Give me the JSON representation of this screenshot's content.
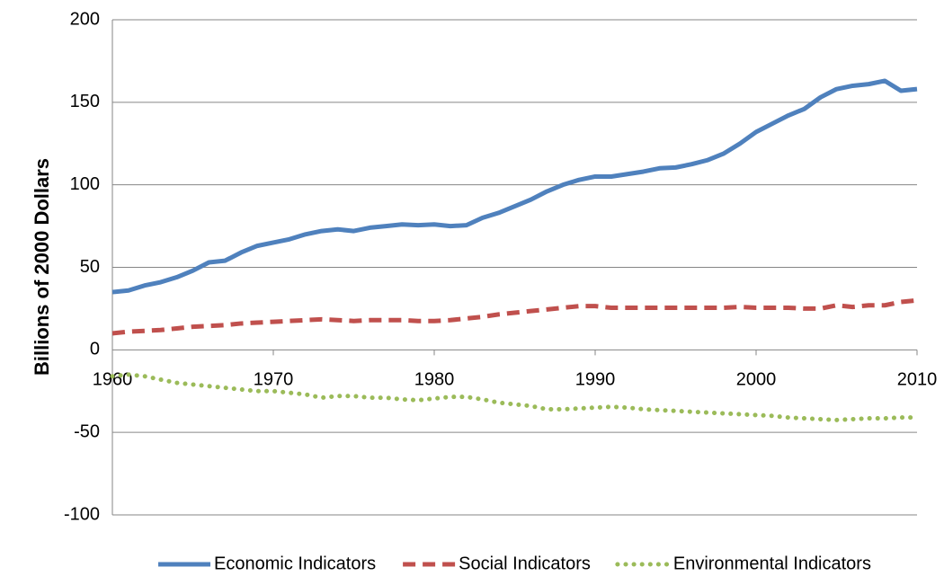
{
  "chart_data": {
    "type": "line",
    "y_label": "Billions of 2000 Dollars",
    "x": [
      1960,
      1961,
      1962,
      1963,
      1964,
      1965,
      1966,
      1967,
      1968,
      1969,
      1970,
      1971,
      1972,
      1973,
      1974,
      1975,
      1976,
      1977,
      1978,
      1979,
      1980,
      1981,
      1982,
      1983,
      1984,
      1985,
      1986,
      1987,
      1988,
      1989,
      1990,
      1991,
      1992,
      1993,
      1994,
      1995,
      1996,
      1997,
      1998,
      1999,
      2000,
      2001,
      2002,
      2003,
      2004,
      2005,
      2006,
      2007,
      2008,
      2009,
      2010
    ],
    "xlim": [
      1960,
      2010
    ],
    "xticks": [
      1960,
      1970,
      1980,
      1990,
      2000,
      2010
    ],
    "ylim": [
      -100,
      200
    ],
    "yticks": [
      -100,
      -50,
      0,
      50,
      100,
      150,
      200
    ],
    "grid": true,
    "legend": "bottom",
    "series": [
      {
        "name": "Economic Indicators",
        "color": "#4f81bd",
        "dash": "solid",
        "values": [
          35,
          36,
          39,
          41,
          44,
          48,
          53,
          54,
          59,
          63,
          65,
          67,
          70,
          72,
          73,
          72,
          74,
          75,
          76,
          75.5,
          76,
          75,
          75.5,
          80,
          83,
          87,
          91,
          96,
          100,
          103,
          105,
          105,
          106.5,
          108,
          110,
          110.5,
          112.5,
          115,
          119,
          125,
          132,
          137,
          142,
          146,
          153,
          158,
          160,
          161,
          163,
          157,
          158
        ]
      },
      {
        "name": "Social Indicators",
        "color": "#c0504d",
        "dash": "dashed",
        "values": [
          10,
          11,
          11.5,
          12,
          13,
          14,
          14.5,
          15,
          16,
          16.5,
          17,
          17.5,
          18,
          18.5,
          18,
          17.5,
          18,
          18,
          18,
          17.5,
          17.5,
          18,
          19,
          20,
          21.5,
          22.5,
          23.5,
          24.5,
          25.5,
          26.5,
          26.5,
          25.5,
          25.5,
          25.5,
          25.5,
          25.5,
          25.5,
          25.5,
          25.5,
          26,
          25.5,
          25.5,
          25.5,
          25,
          25,
          27,
          26,
          27,
          27,
          29,
          30
        ]
      },
      {
        "name": "Environmental Indicators",
        "color": "#9bbb59",
        "dash": "dotted",
        "values": [
          -16,
          -15,
          -16,
          -18,
          -20,
          -21,
          -22,
          -23,
          -24,
          -25,
          -25,
          -26,
          -27,
          -29,
          -28,
          -28,
          -29,
          -29,
          -30,
          -30.5,
          -29.5,
          -28.5,
          -28.5,
          -30,
          -32,
          -33,
          -34,
          -36,
          -36,
          -35.5,
          -35,
          -34.5,
          -35,
          -36,
          -36.5,
          -37,
          -37.5,
          -38,
          -38.5,
          -39,
          -39.5,
          -40,
          -41,
          -41.5,
          -42,
          -42.5,
          -42,
          -41.5,
          -41.5,
          -41,
          -41
        ]
      }
    ]
  }
}
